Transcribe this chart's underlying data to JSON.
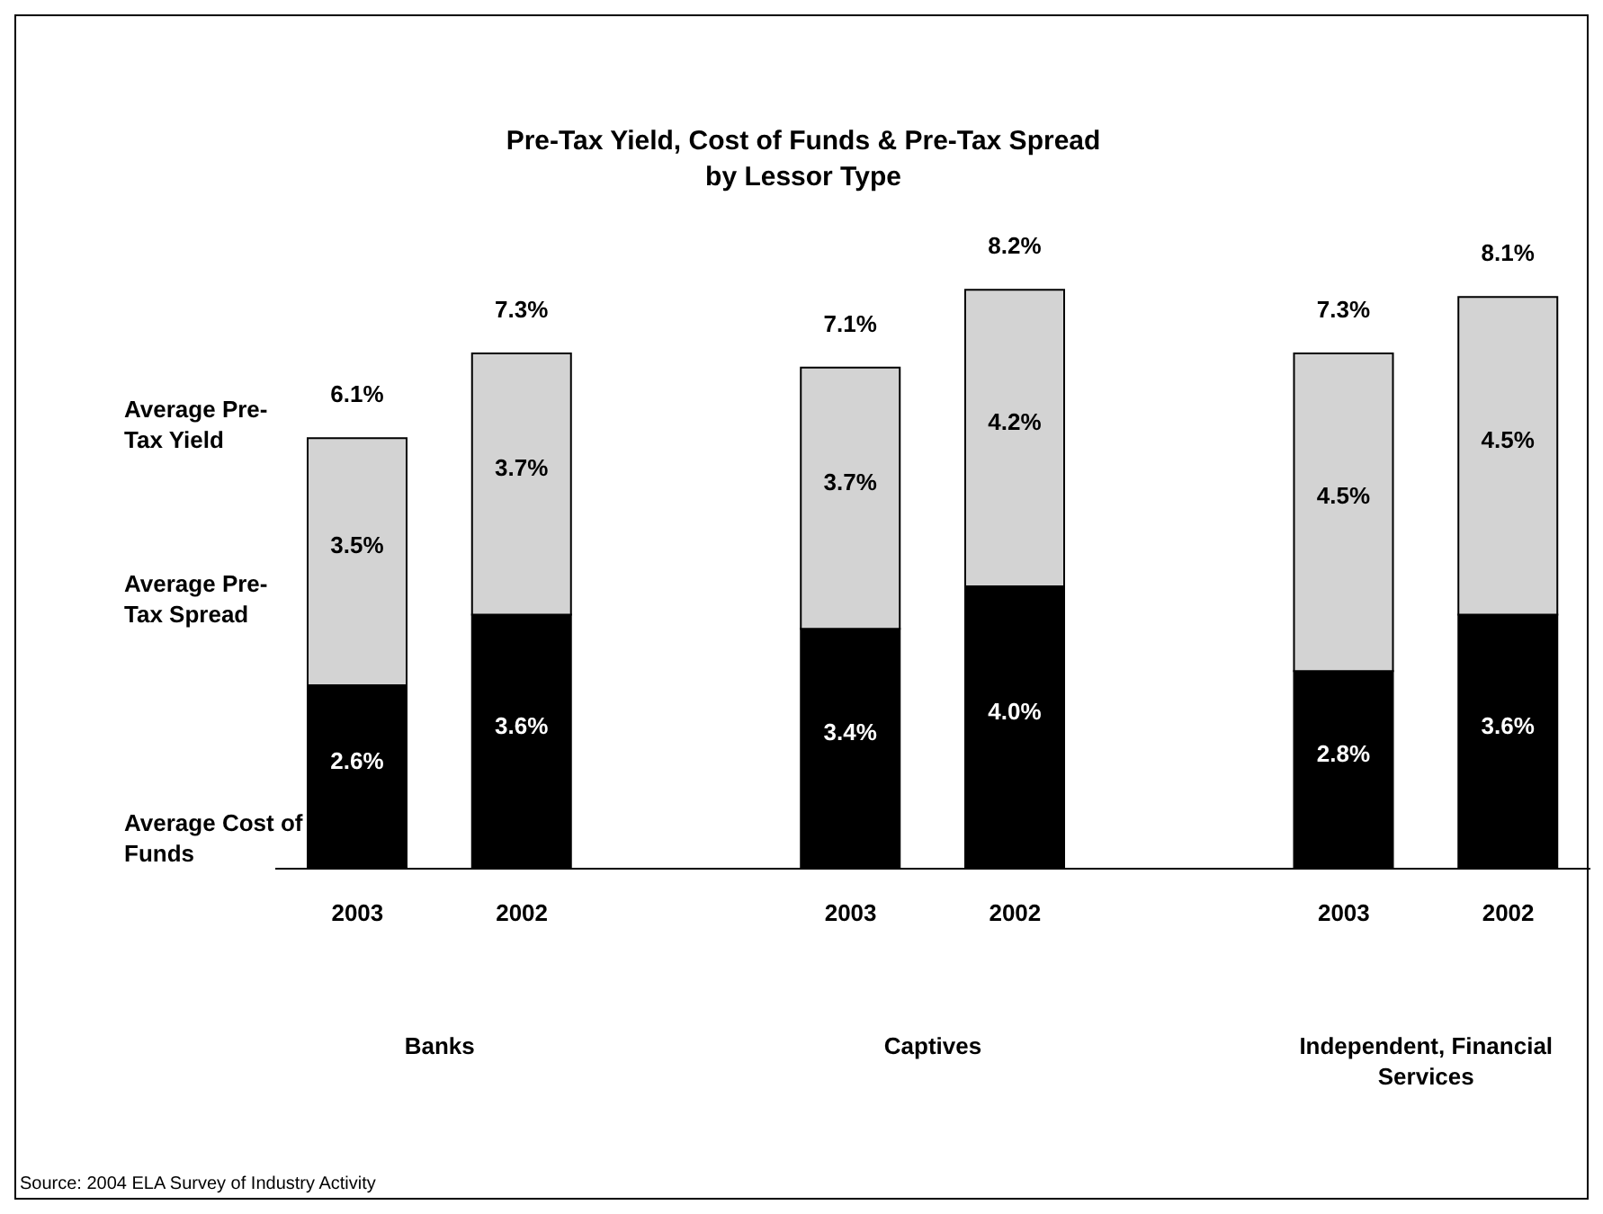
{
  "chart_data": {
    "type": "bar",
    "stacked": true,
    "title": "Pre-Tax Yield, Cost of Funds & Pre-Tax Spread\nby Lessor Type",
    "categories": [
      "2003",
      "2002",
      null,
      "2003",
      "2002",
      null,
      "2003",
      "2002"
    ],
    "series": [
      {
        "name": "Average Cost of Funds",
        "color": "#000000",
        "values": [
          2.6,
          3.6,
          null,
          3.4,
          4.0,
          null,
          2.8,
          3.6
        ],
        "value_labels": [
          "2.6%",
          "3.6%",
          null,
          "3.4%",
          "4.0%",
          null,
          "2.8%",
          "3.6%"
        ]
      },
      {
        "name": "Average Pre-Tax Spread",
        "color": "#d3d3d3",
        "values": [
          3.5,
          3.7,
          null,
          3.7,
          4.2,
          null,
          4.5,
          4.5
        ],
        "value_labels": [
          "3.5%",
          "3.7%",
          null,
          "3.7%",
          "4.2%",
          null,
          "4.5%",
          "4.5%"
        ]
      }
    ],
    "totals": [
      "6.1%",
      "7.3%",
      null,
      "7.1%",
      "8.2%",
      null,
      "7.3%",
      "8.1%"
    ],
    "ylabel": "Average Pre-Tax Yield",
    "legend": "left",
    "grid": false,
    "annotations": [
      "Banks",
      "Captives",
      "Independent, Financial Services",
      "Source: 2004 ELA Survey of Industry Activity"
    ]
  }
}
